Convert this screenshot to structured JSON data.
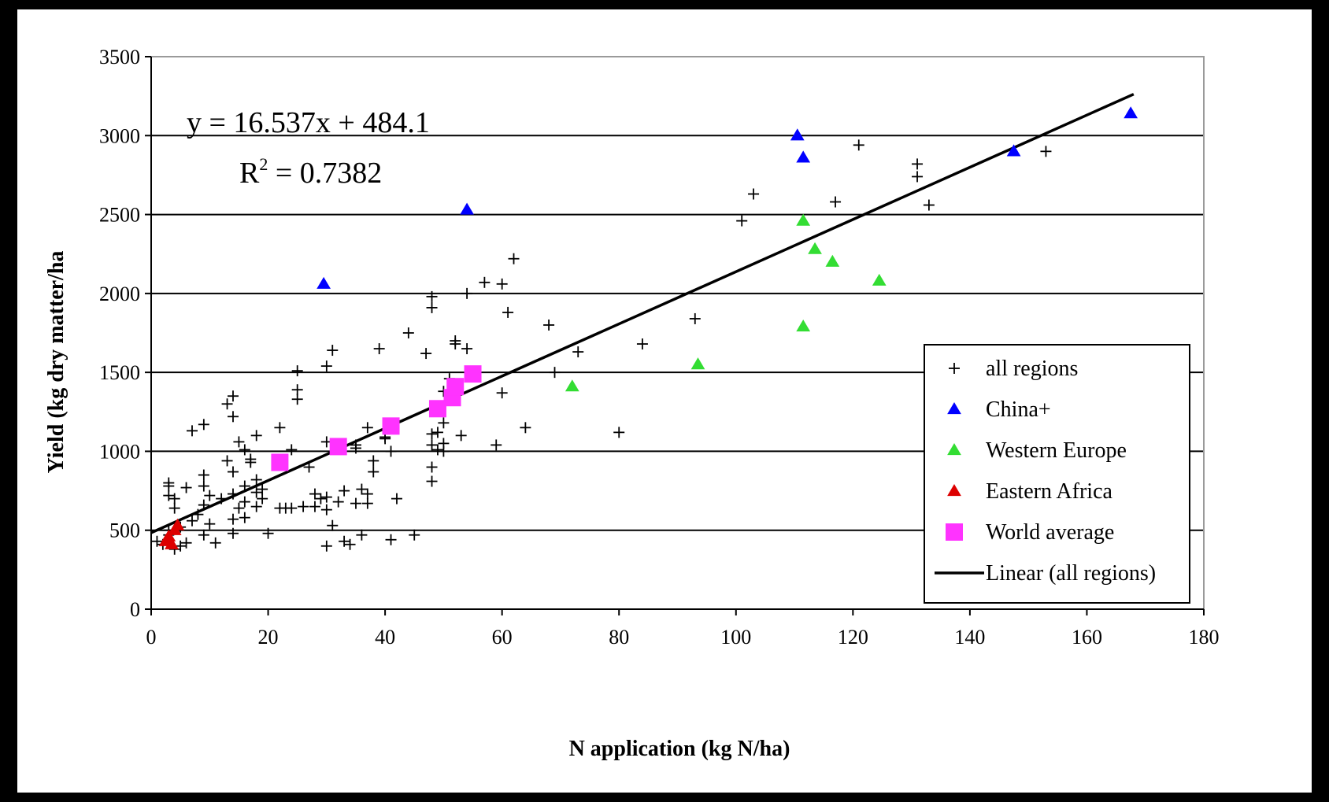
{
  "chart_data": {
    "type": "scatter",
    "xlabel": "N application (kg N/ha)",
    "ylabel": "Yield (kg dry matter/ha",
    "xlim": [
      0,
      180
    ],
    "ylim": [
      0,
      3500
    ],
    "x_ticks": [
      "0",
      "20",
      "40",
      "60",
      "80",
      "100",
      "120",
      "140",
      "160",
      "180"
    ],
    "y_ticks": [
      "0",
      "500",
      "1000",
      "1500",
      "2000",
      "2500",
      "3000",
      "3500"
    ],
    "grid": "horizontal",
    "legend_position": "bottom-right",
    "annotations": {
      "equation": "y = 16.537x + 484.1",
      "r2_prefix": "R",
      "r2_sup": "2",
      "r2_value": " = 0.7382"
    },
    "trendline": {
      "name": "Linear (all regions)",
      "slope": 16.537,
      "intercept": 484.1,
      "x_range": [
        0,
        168
      ],
      "color": "#000000"
    },
    "series": [
      {
        "name": "all regions",
        "marker": "plus",
        "color": "#000000",
        "points": [
          [
            1,
            430
          ],
          [
            2,
            410
          ],
          [
            3,
            470
          ],
          [
            3,
            500
          ],
          [
            3,
            720
          ],
          [
            3,
            780
          ],
          [
            3,
            800
          ],
          [
            4,
            640
          ],
          [
            4,
            700
          ],
          [
            4,
            380
          ],
          [
            5,
            400
          ],
          [
            5,
            520
          ],
          [
            6,
            770
          ],
          [
            6,
            420
          ],
          [
            7,
            1130
          ],
          [
            7,
            560
          ],
          [
            8,
            600
          ],
          [
            9,
            1170
          ],
          [
            9,
            850
          ],
          [
            9,
            780
          ],
          [
            9,
            660
          ],
          [
            9,
            470
          ],
          [
            10,
            720
          ],
          [
            10,
            540
          ],
          [
            11,
            420
          ],
          [
            12,
            700
          ],
          [
            13,
            1300
          ],
          [
            13,
            940
          ],
          [
            14,
            1350
          ],
          [
            14,
            1220
          ],
          [
            14,
            870
          ],
          [
            14,
            730
          ],
          [
            14,
            570
          ],
          [
            14,
            480
          ],
          [
            15,
            1060
          ],
          [
            15,
            640
          ],
          [
            16,
            1010
          ],
          [
            16,
            780
          ],
          [
            16,
            680
          ],
          [
            16,
            580
          ],
          [
            17,
            950
          ],
          [
            17,
            930
          ],
          [
            18,
            740
          ],
          [
            18,
            650
          ],
          [
            18,
            820
          ],
          [
            18,
            1100
          ],
          [
            19,
            760
          ],
          [
            19,
            700
          ],
          [
            20,
            480
          ],
          [
            22,
            1150
          ],
          [
            22,
            640
          ],
          [
            23,
            640
          ],
          [
            24,
            1010
          ],
          [
            24,
            640
          ],
          [
            25,
            1510
          ],
          [
            25,
            1390
          ],
          [
            25,
            1330
          ],
          [
            26,
            650
          ],
          [
            27,
            900
          ],
          [
            28,
            730
          ],
          [
            28,
            650
          ],
          [
            29,
            700
          ],
          [
            30,
            1540
          ],
          [
            30,
            1060
          ],
          [
            30,
            710
          ],
          [
            30,
            630
          ],
          [
            30,
            400
          ],
          [
            31,
            1640
          ],
          [
            31,
            530
          ],
          [
            32,
            680
          ],
          [
            33,
            430
          ],
          [
            33,
            750
          ],
          [
            34,
            410
          ],
          [
            35,
            1040
          ],
          [
            35,
            1020
          ],
          [
            35,
            670
          ],
          [
            36,
            760
          ],
          [
            36,
            470
          ],
          [
            37,
            1150
          ],
          [
            37,
            730
          ],
          [
            37,
            670
          ],
          [
            38,
            870
          ],
          [
            38,
            940
          ],
          [
            39,
            1650
          ],
          [
            40,
            1080
          ],
          [
            40,
            1090
          ],
          [
            41,
            1000
          ],
          [
            41,
            440
          ],
          [
            42,
            700
          ],
          [
            44,
            1750
          ],
          [
            45,
            470
          ],
          [
            47,
            1620
          ],
          [
            48,
            1910
          ],
          [
            48,
            1980
          ],
          [
            48,
            1110
          ],
          [
            48,
            900
          ],
          [
            48,
            810
          ],
          [
            48,
            1040
          ],
          [
            49,
            1120
          ],
          [
            49,
            1010
          ],
          [
            50,
            1050
          ],
          [
            50,
            1180
          ],
          [
            50,
            1000
          ],
          [
            50,
            1380
          ],
          [
            51,
            1460
          ],
          [
            52,
            1680
          ],
          [
            52,
            1700
          ],
          [
            53,
            1100
          ],
          [
            54,
            1650
          ],
          [
            54,
            2000
          ],
          [
            57,
            2070
          ],
          [
            59,
            1040
          ],
          [
            60,
            2060
          ],
          [
            60,
            1370
          ],
          [
            61,
            1880
          ],
          [
            62,
            2220
          ],
          [
            64,
            1150
          ],
          [
            68,
            1800
          ],
          [
            69,
            1500
          ],
          [
            73,
            1630
          ],
          [
            80,
            1120
          ],
          [
            84,
            1680
          ],
          [
            93,
            1840
          ],
          [
            101,
            2460
          ],
          [
            103,
            2630
          ],
          [
            117,
            2580
          ],
          [
            121,
            2940
          ],
          [
            131,
            2820
          ],
          [
            131,
            2740
          ],
          [
            133,
            2560
          ],
          [
            153,
            2900
          ]
        ]
      },
      {
        "name": "China+",
        "marker": "triangle",
        "color": "#0000ff",
        "points": [
          [
            29.5,
            2060
          ],
          [
            54,
            2530
          ],
          [
            110.5,
            3000
          ],
          [
            111.5,
            2860
          ],
          [
            147.5,
            2900
          ],
          [
            167.5,
            3140
          ]
        ]
      },
      {
        "name": "Western Europe",
        "marker": "triangle",
        "color": "#33dd33",
        "points": [
          [
            72,
            1410
          ],
          [
            93.5,
            1550
          ],
          [
            111.5,
            1790
          ],
          [
            111.5,
            2460
          ],
          [
            113.5,
            2280
          ],
          [
            116.5,
            2200
          ],
          [
            124.5,
            2080
          ]
        ]
      },
      {
        "name": "Eastern Africa",
        "marker": "triangle",
        "color": "#dd0000",
        "points": [
          [
            2.5,
            430
          ],
          [
            3,
            460
          ],
          [
            3.5,
            410
          ],
          [
            4,
            500
          ],
          [
            4.5,
            530
          ]
        ]
      },
      {
        "name": "World average",
        "marker": "square",
        "color": "#ff33ff",
        "points": [
          [
            22,
            930
          ],
          [
            32,
            1030
          ],
          [
            41,
            1160
          ],
          [
            49,
            1270
          ],
          [
            51.5,
            1340
          ],
          [
            52,
            1410
          ],
          [
            55,
            1490
          ]
        ]
      }
    ]
  }
}
